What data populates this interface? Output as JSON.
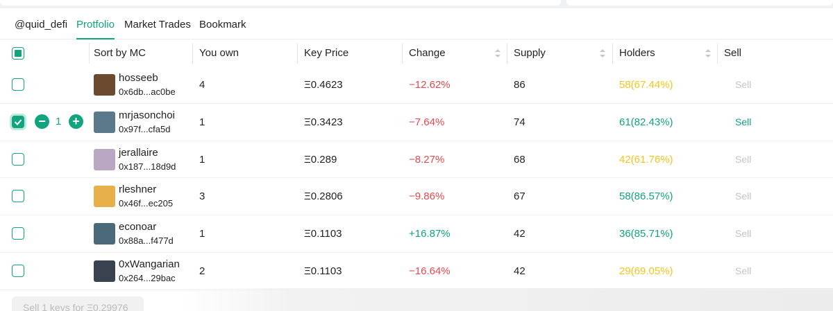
{
  "tabs": {
    "items": [
      "@quid_defi",
      "Protfolio",
      "Market Trades",
      "Bookmark"
    ],
    "active": 1
  },
  "table": {
    "headers": [
      "Sort by MC",
      "You own",
      "Key Price",
      "Change",
      "Supply",
      "Holders",
      "Sell"
    ],
    "sortable": [
      false,
      false,
      false,
      true,
      true,
      true,
      false
    ],
    "rows": [
      {
        "name": "hosseeb",
        "address": "0x6db...ac0be",
        "own": "4",
        "price": "Ξ0.4623",
        "change": "−12.62%",
        "change_color": "#e5484d",
        "supply": "86",
        "holders": "58(67.44%)",
        "holders_color": "#f5c518",
        "sell": "Sell",
        "sell_enabled": false,
        "selected": false
      },
      {
        "name": "mrjasonchoi",
        "address": "0x97f...cfa5d",
        "own": "1",
        "price": "Ξ0.3423",
        "change": "−7.64%",
        "change_color": "#e5484d",
        "supply": "74",
        "holders": "61(82.43%)",
        "holders_color": "#12a37f",
        "sell": "Sell",
        "sell_enabled": true,
        "selected": true,
        "quantity": "1"
      },
      {
        "name": "jerallaire",
        "address": "0x187...18d9d",
        "own": "1",
        "price": "Ξ0.289",
        "change": "−8.27%",
        "change_color": "#e5484d",
        "supply": "68",
        "holders": "42(61.76%)",
        "holders_color": "#f5c518",
        "sell": "Sell",
        "sell_enabled": false,
        "selected": false
      },
      {
        "name": "rleshner",
        "address": "0x46f...ec205",
        "own": "3",
        "price": "Ξ0.2806",
        "change": "−9.86%",
        "change_color": "#e5484d",
        "supply": "67",
        "holders": "58(86.57%)",
        "holders_color": "#12a37f",
        "sell": "Sell",
        "sell_enabled": false,
        "selected": false
      },
      {
        "name": "econoar",
        "address": "0x88a...f477d",
        "own": "1",
        "price": "Ξ0.1103",
        "change": "+16.87%",
        "change_color": "#12a37f",
        "supply": "42",
        "holders": "36(85.71%)",
        "holders_color": "#12a37f",
        "sell": "Sell",
        "sell_enabled": false,
        "selected": false
      },
      {
        "name": "0xWangarian",
        "address": "0x264...29bac",
        "own": "2",
        "price": "Ξ0.1103",
        "change": "−16.64%",
        "change_color": "#e5484d",
        "supply": "42",
        "holders": "29(69.05%)",
        "holders_color": "#f5c518",
        "sell": "Sell",
        "sell_enabled": false,
        "selected": false
      }
    ]
  },
  "footer": {
    "sell_button": "Sell 1 keys for Ξ0.29976"
  }
}
